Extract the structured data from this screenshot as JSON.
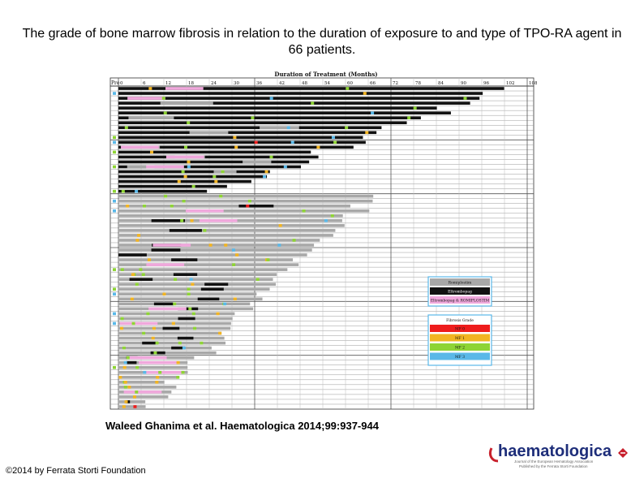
{
  "title": "The grade of bone marrow fibrosis in relation to the duration of exposure to and type of TPO-RA agent in 66 patients.",
  "citation": "Waleed Ghanima et al. Haematologica 2014;99:937-944",
  "copyright": "©2014 by Ferrata Storti Foundation",
  "logo": {
    "text": "haematologica",
    "subtext1": "Journal of the European Hematology Association",
    "subtext2": "Published by the Ferrata Storti Foundation"
  },
  "figure": {
    "header": "Duration of Treatment (Months)",
    "pre_label": "Pre",
    "ticks": [
      "0",
      "6",
      "12",
      "18",
      "24",
      "30",
      "36",
      "42",
      "48",
      "54",
      "60",
      "66",
      "72",
      "78",
      "84",
      "90",
      "96",
      "102",
      "108+"
    ],
    "colors": {
      "romiplostim": "#111111",
      "eltrombopag": "#a8a8a8",
      "switch": "#f0a8dc",
      "mf0": "#ee1c1c",
      "mf1": "#f2b422",
      "mf2": "#8ed435",
      "mf3": "#5ab8e8"
    },
    "legend_agents": [
      "Romiplostim",
      "Eltrombopag",
      "Eltrombopag & ROMIPLOSTIM"
    ],
    "legend_grade_title": "Fibrosis Grade",
    "legend_grades": [
      "MF 0",
      "MF 1",
      "MF 2",
      "MF 3"
    ]
  }
}
